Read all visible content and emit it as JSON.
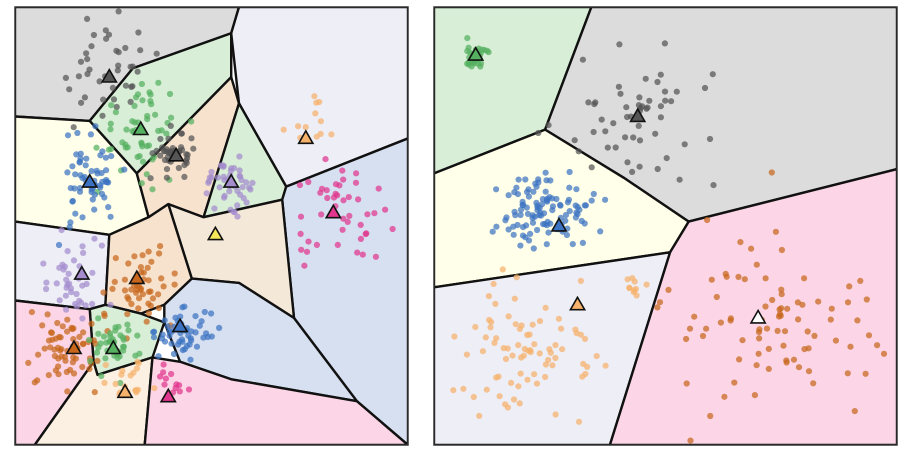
{
  "figure": {
    "caption": ""
  },
  "chart_data": [
    {
      "type": "scatter",
      "subtype": "voronoi-clustering",
      "title": "",
      "xlabel": "",
      "ylabel": "",
      "xlim": [
        0,
        1
      ],
      "ylim": [
        0,
        1
      ],
      "grid": false,
      "legend": "none",
      "palette": {
        "gray": "#555555",
        "green": "#55b060",
        "blue": "#3b73c2",
        "purple": "#a48ccd",
        "orange": "#f6b26b",
        "pink": "#e1358e",
        "yellow": "#f5e85c",
        "brown": "#c8661c"
      },
      "cells": [
        {
          "fill": "#dcdcdc",
          "poly": [
            [
              0,
              1
            ],
            [
              0.57,
              1
            ],
            [
              0.55,
              0.94
            ],
            [
              0.3,
              0.86
            ],
            [
              0.19,
              0.74
            ],
            [
              0,
              0.75
            ]
          ]
        },
        {
          "fill": "#eeeef6",
          "poly": [
            [
              0.57,
              1
            ],
            [
              1,
              1
            ],
            [
              1,
              0.7
            ],
            [
              0.69,
              0.59
            ],
            [
              0.57,
              0.78
            ],
            [
              0.55,
              0.94
            ]
          ]
        },
        {
          "fill": "#d8eed6",
          "poly": [
            [
              0.19,
              0.74
            ],
            [
              0.3,
              0.86
            ],
            [
              0.55,
              0.94
            ],
            [
              0.55,
              0.84
            ],
            [
              0.31,
              0.62
            ]
          ]
        },
        {
          "fill": "#ffffea",
          "poly": [
            [
              0,
              0.75
            ],
            [
              0.19,
              0.74
            ],
            [
              0.31,
              0.62
            ],
            [
              0.34,
              0.52
            ],
            [
              0.24,
              0.48
            ],
            [
              0,
              0.51
            ]
          ]
        },
        {
          "fill": "#f6e2cd",
          "poly": [
            [
              0.55,
              0.84
            ],
            [
              0.57,
              0.78
            ],
            [
              0.48,
              0.52
            ],
            [
              0.39,
              0.55
            ],
            [
              0.34,
              0.52
            ],
            [
              0.31,
              0.62
            ]
          ]
        },
        {
          "fill": "#d8eed6",
          "poly": [
            [
              0.57,
              0.78
            ],
            [
              0.69,
              0.59
            ],
            [
              0.68,
              0.56
            ],
            [
              0.48,
              0.52
            ]
          ]
        },
        {
          "fill": "#d6e0f0",
          "poly": [
            [
              1,
              0.7
            ],
            [
              0.69,
              0.59
            ],
            [
              0.68,
              0.56
            ],
            [
              0.71,
              0.29
            ],
            [
              0.87,
              0.1
            ],
            [
              1,
              0
            ]
          ]
        },
        {
          "fill": "#f4e8d8",
          "poly": [
            [
              0.48,
              0.52
            ],
            [
              0.68,
              0.56
            ],
            [
              0.71,
              0.29
            ],
            [
              0.57,
              0.37
            ],
            [
              0.45,
              0.38
            ],
            [
              0.39,
              0.55
            ]
          ]
        },
        {
          "fill": "#eeeef6",
          "poly": [
            [
              0,
              0.51
            ],
            [
              0.24,
              0.48
            ],
            [
              0.23,
              0.32
            ],
            [
              0.19,
              0.31
            ],
            [
              0,
              0.33
            ]
          ]
        },
        {
          "fill": "#f6e2cd",
          "poly": [
            [
              0.24,
              0.48
            ],
            [
              0.34,
              0.52
            ],
            [
              0.39,
              0.55
            ],
            [
              0.45,
              0.38
            ],
            [
              0.38,
              0.32
            ],
            [
              0.32,
              0.3
            ],
            [
              0.23,
              0.32
            ]
          ]
        },
        {
          "fill": "#d6e0f0",
          "poly": [
            [
              0.45,
              0.38
            ],
            [
              0.57,
              0.37
            ],
            [
              0.71,
              0.29
            ],
            [
              0.87,
              0.1
            ],
            [
              0.55,
              0.15
            ],
            [
              0.42,
              0.19
            ],
            [
              0.38,
              0.28
            ],
            [
              0.38,
              0.32
            ]
          ]
        },
        {
          "fill": "#d8eed6",
          "poly": [
            [
              0.19,
              0.31
            ],
            [
              0.23,
              0.32
            ],
            [
              0.32,
              0.3
            ],
            [
              0.38,
              0.28
            ],
            [
              0.35,
              0.2
            ],
            [
              0.21,
              0.16
            ],
            [
              0.2,
              0.19
            ]
          ]
        },
        {
          "fill": "#fcd6e6",
          "poly": [
            [
              0,
              0.33
            ],
            [
              0.19,
              0.31
            ],
            [
              0.2,
              0.19
            ],
            [
              0.05,
              0
            ],
            [
              0,
              0
            ]
          ]
        },
        {
          "fill": "#fcf0e2",
          "poly": [
            [
              0.2,
              0.19
            ],
            [
              0.21,
              0.16
            ],
            [
              0.35,
              0.2
            ],
            [
              0.33,
              0
            ],
            [
              0.05,
              0
            ]
          ]
        },
        {
          "fill": "#fcd6e6",
          "poly": [
            [
              0.35,
              0.2
            ],
            [
              0.42,
              0.19
            ],
            [
              0.55,
              0.15
            ],
            [
              0.87,
              0.1
            ],
            [
              1,
              0
            ],
            [
              0.33,
              0
            ]
          ]
        }
      ],
      "centroids": [
        {
          "x": 0.24,
          "y": 0.84,
          "fill": "#555555"
        },
        {
          "x": 0.32,
          "y": 0.72,
          "fill": "#55b060"
        },
        {
          "x": 0.41,
          "y": 0.66,
          "fill": "#555555"
        },
        {
          "x": 0.55,
          "y": 0.6,
          "fill": "#a48ccd"
        },
        {
          "x": 0.74,
          "y": 0.7,
          "fill": "#f6b26b"
        },
        {
          "x": 0.19,
          "y": 0.6,
          "fill": "#3b73c2"
        },
        {
          "x": 0.81,
          "y": 0.53,
          "fill": "#e1358e"
        },
        {
          "x": 0.51,
          "y": 0.48,
          "fill": "#f5e85c"
        },
        {
          "x": 0.17,
          "y": 0.39,
          "fill": "#a48ccd"
        },
        {
          "x": 0.31,
          "y": 0.38,
          "fill": "#c8661c"
        },
        {
          "x": 0.42,
          "y": 0.27,
          "fill": "#3b73c2"
        },
        {
          "x": 0.15,
          "y": 0.22,
          "fill": "#c8661c"
        },
        {
          "x": 0.25,
          "y": 0.22,
          "fill": "#55b060"
        },
        {
          "x": 0.28,
          "y": 0.12,
          "fill": "#f6b26b"
        },
        {
          "x": 0.39,
          "y": 0.11,
          "fill": "#e1358e"
        }
      ],
      "clusters": [
        {
          "color": "#555555",
          "cx": 0.23,
          "cy": 0.85,
          "sx": 0.07,
          "sy": 0.07,
          "n": 40
        },
        {
          "color": "#55b060",
          "cx": 0.32,
          "cy": 0.73,
          "sx": 0.055,
          "sy": 0.055,
          "n": 55
        },
        {
          "color": "#555555",
          "cx": 0.41,
          "cy": 0.66,
          "sx": 0.025,
          "sy": 0.025,
          "n": 45
        },
        {
          "color": "#a48ccd",
          "cx": 0.54,
          "cy": 0.6,
          "sx": 0.03,
          "sy": 0.025,
          "n": 45
        },
        {
          "color": "#f6b26b",
          "cx": 0.75,
          "cy": 0.72,
          "sx": 0.03,
          "sy": 0.03,
          "n": 12
        },
        {
          "color": "#3b73c2",
          "cx": 0.19,
          "cy": 0.6,
          "sx": 0.04,
          "sy": 0.05,
          "n": 60
        },
        {
          "color": "#e1358e",
          "cx": 0.83,
          "cy": 0.52,
          "sx": 0.06,
          "sy": 0.06,
          "n": 45
        },
        {
          "color": "#a48ccd",
          "cx": 0.16,
          "cy": 0.39,
          "sx": 0.055,
          "sy": 0.05,
          "n": 40
        },
        {
          "color": "#c8661c",
          "cx": 0.32,
          "cy": 0.36,
          "sx": 0.04,
          "sy": 0.045,
          "n": 50
        },
        {
          "color": "#3b73c2",
          "cx": 0.43,
          "cy": 0.26,
          "sx": 0.035,
          "sy": 0.025,
          "n": 55
        },
        {
          "color": "#c8661c",
          "cx": 0.13,
          "cy": 0.22,
          "sx": 0.045,
          "sy": 0.045,
          "n": 65
        },
        {
          "color": "#55b060",
          "cx": 0.25,
          "cy": 0.23,
          "sx": 0.035,
          "sy": 0.03,
          "n": 40
        },
        {
          "color": "#f6b26b",
          "cx": 0.28,
          "cy": 0.14,
          "sx": 0.035,
          "sy": 0.025,
          "n": 20
        },
        {
          "color": "#e1358e",
          "cx": 0.4,
          "cy": 0.15,
          "sx": 0.02,
          "sy": 0.025,
          "n": 12
        }
      ]
    },
    {
      "type": "scatter",
      "subtype": "voronoi-clustering",
      "title": "",
      "xlabel": "",
      "ylabel": "",
      "xlim": [
        0,
        1
      ],
      "ylim": [
        0,
        1
      ],
      "grid": false,
      "legend": "none",
      "palette": {
        "gray": "#555555",
        "green": "#55b060",
        "blue": "#3b73c2",
        "orange": "#f6b26b",
        "brown": "#c8661c"
      },
      "cells": [
        {
          "fill": "#d8eed6",
          "poly": [
            [
              0,
              1
            ],
            [
              0.34,
              1
            ],
            [
              0.24,
              0.72
            ],
            [
              0,
              0.62
            ]
          ]
        },
        {
          "fill": "#dcdcdc",
          "poly": [
            [
              0.34,
              1
            ],
            [
              1,
              1
            ],
            [
              1,
              0.63
            ],
            [
              0.55,
              0.51
            ],
            [
              0.41,
              0.61
            ],
            [
              0.24,
              0.72
            ]
          ]
        },
        {
          "fill": "#ffffea",
          "poly": [
            [
              0,
              0.62
            ],
            [
              0.24,
              0.72
            ],
            [
              0.41,
              0.61
            ],
            [
              0.55,
              0.51
            ],
            [
              0.51,
              0.44
            ],
            [
              0,
              0.36
            ]
          ]
        },
        {
          "fill": "#eeeef6",
          "poly": [
            [
              0,
              0.36
            ],
            [
              0.51,
              0.44
            ],
            [
              0.38,
              0
            ],
            [
              0,
              0
            ]
          ]
        },
        {
          "fill": "#fcd6e6",
          "poly": [
            [
              0.51,
              0.44
            ],
            [
              0.55,
              0.51
            ],
            [
              1,
              0.63
            ],
            [
              1,
              0
            ],
            [
              0.38,
              0
            ]
          ]
        }
      ],
      "centroids": [
        {
          "x": 0.09,
          "y": 0.89,
          "fill": "#55b060"
        },
        {
          "x": 0.44,
          "y": 0.75,
          "fill": "#555555"
        },
        {
          "x": 0.27,
          "y": 0.5,
          "fill": "#3b73c2"
        },
        {
          "x": 0.31,
          "y": 0.32,
          "fill": "#f6b26b"
        },
        {
          "x": 0.7,
          "y": 0.29,
          "fill": "#ffffff"
        }
      ],
      "clusters": [
        {
          "color": "#55b060",
          "cx": 0.09,
          "cy": 0.89,
          "sx": 0.015,
          "sy": 0.02,
          "n": 30
        },
        {
          "color": "#555555",
          "cx": 0.44,
          "cy": 0.73,
          "sx": 0.09,
          "sy": 0.07,
          "n": 55
        },
        {
          "color": "#3b73c2",
          "cx": 0.25,
          "cy": 0.53,
          "sx": 0.05,
          "sy": 0.045,
          "n": 110
        },
        {
          "color": "#f6b26b",
          "cx": 0.2,
          "cy": 0.22,
          "sx": 0.07,
          "sy": 0.08,
          "n": 80
        },
        {
          "color": "#f6b26b",
          "cx": 0.43,
          "cy": 0.36,
          "sx": 0.012,
          "sy": 0.01,
          "n": 10
        },
        {
          "color": "#c8661c",
          "cx": 0.73,
          "cy": 0.27,
          "sx": 0.11,
          "sy": 0.11,
          "n": 85
        }
      ]
    }
  ]
}
